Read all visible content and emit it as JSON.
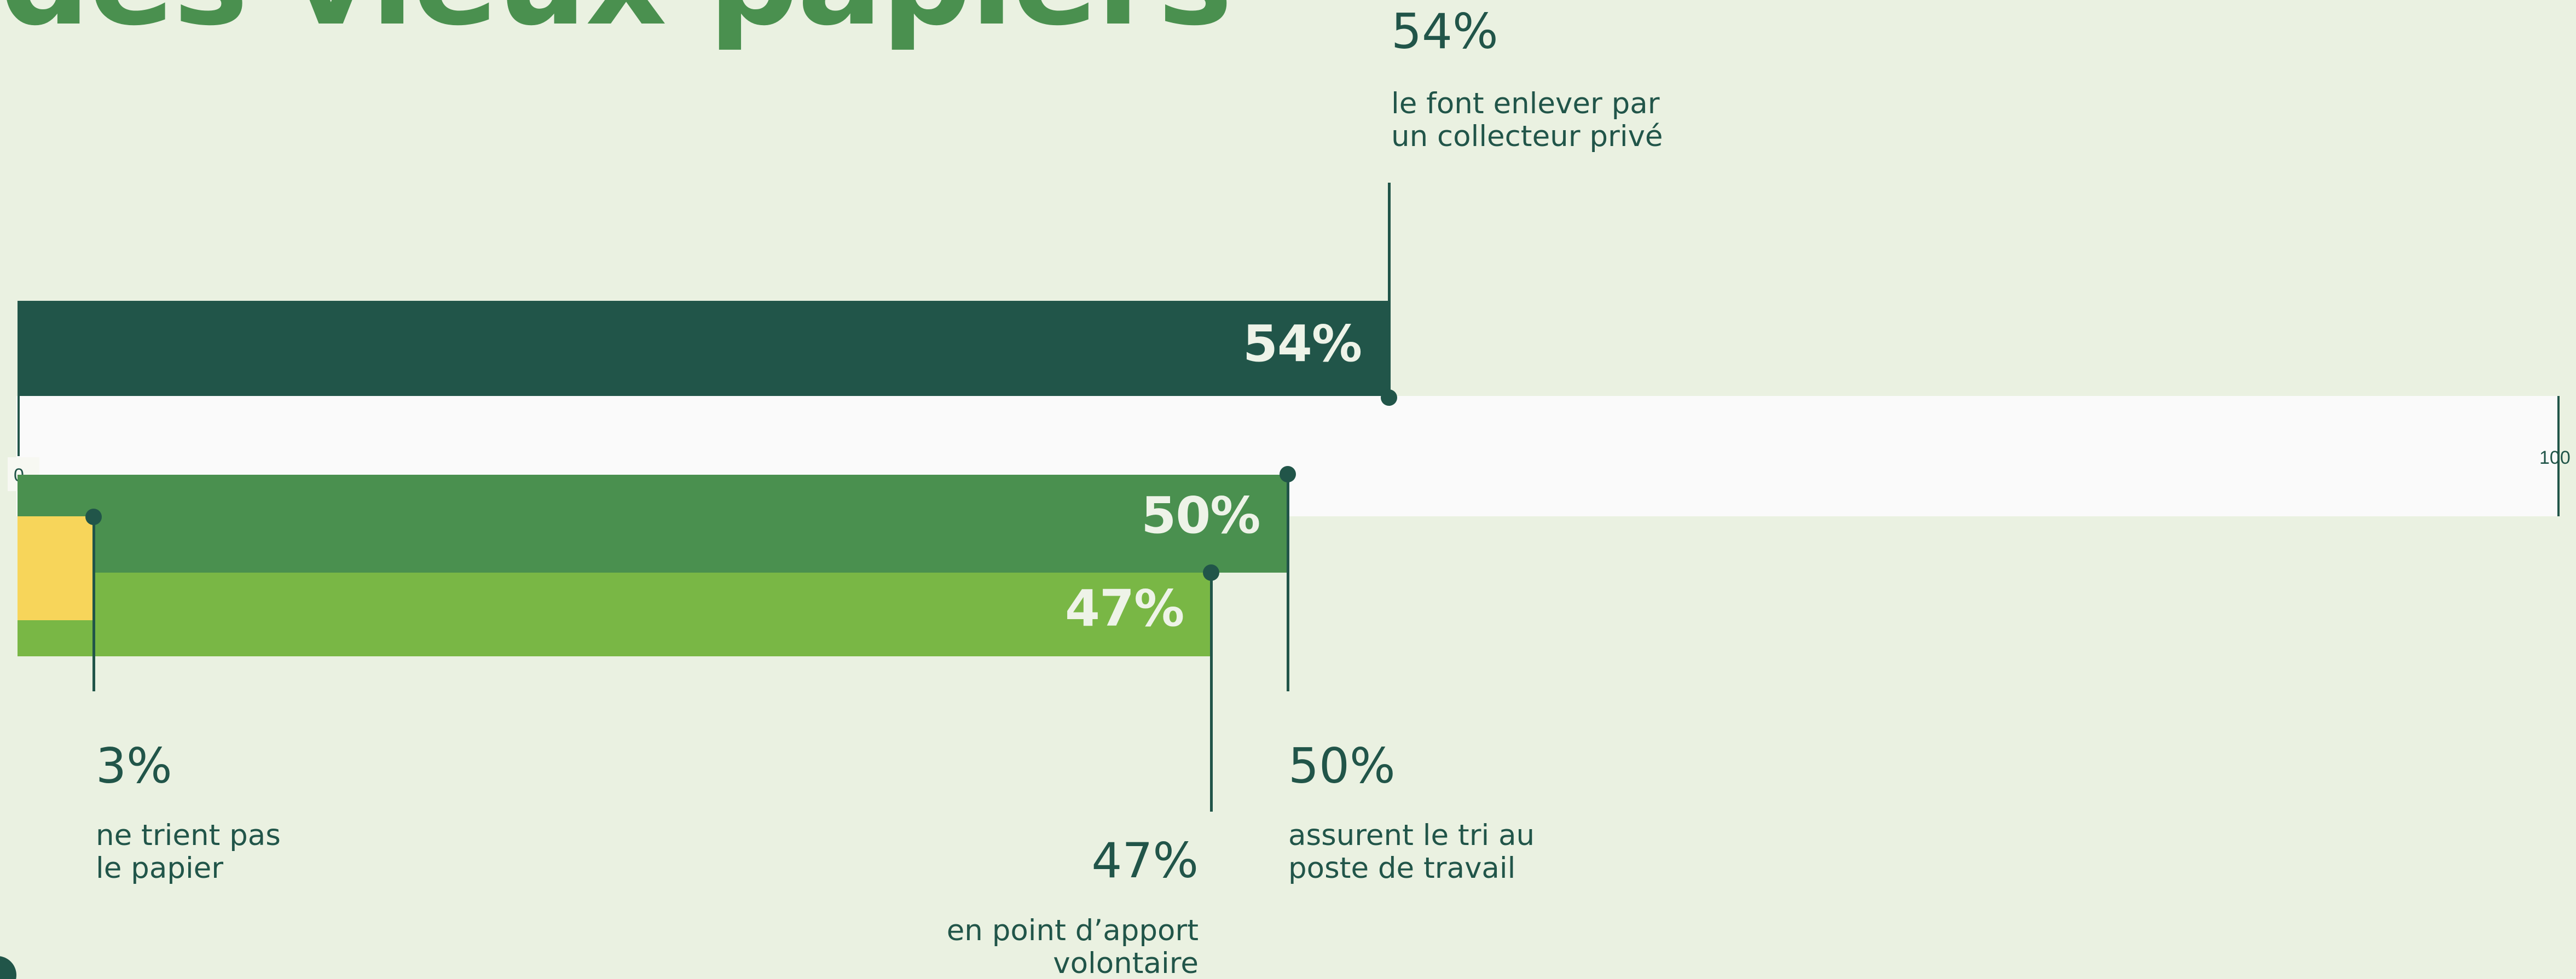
{
  "title": "des vieux papiers",
  "chart_data": {
    "type": "bar",
    "xlim": [
      0,
      100
    ],
    "axis_labels": [
      "0",
      "100"
    ],
    "series": [
      {
        "value": 54,
        "label": "54%",
        "annotation": "54%",
        "description": [
          "le font enlever par",
          "un collecteur privé"
        ],
        "color": "#215549"
      },
      {
        "value": 50,
        "label": "50%",
        "annotation": "50%",
        "description": [
          "assurent le tri au",
          "poste de travail"
        ],
        "color": "#4a904f"
      },
      {
        "value": 47,
        "label": "47%",
        "annotation": "47%",
        "description": [
          "en point d’apport",
          "volontaire"
        ],
        "color": "#79b745"
      },
      {
        "value": 3,
        "label": "",
        "annotation": "3%",
        "description": [
          "ne trient pas",
          "le papier"
        ],
        "color": "#f7d55a"
      }
    ]
  }
}
